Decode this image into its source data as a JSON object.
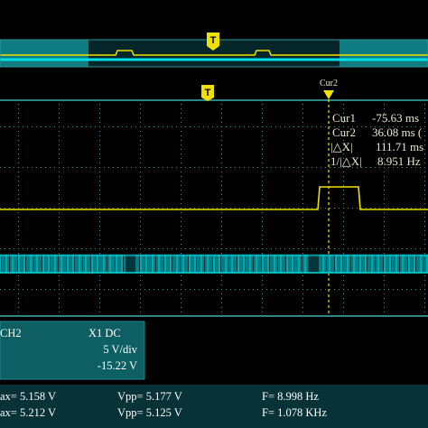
{
  "colors": {
    "background": "#000000",
    "trace_ch1": "#f0e000",
    "trace_ch2": "#00d8e0",
    "grid": "#3a9a9a",
    "panel": "#0e5f63",
    "cursor": "#f0e000",
    "marker_text": "#000000",
    "marker_fill": "#f0e000"
  },
  "icons": {
    "trigger_marker_top": "trigger-position-marker-icon",
    "trigger_marker_grid": "trigger-position-marker-icon",
    "cursor_marker": "cursor-marker-icon"
  },
  "overview": {
    "trigger_label": "T"
  },
  "main": {
    "trigger_label": "T",
    "cursor_label": "Cur2"
  },
  "cursor_readout": {
    "cur1_label": "Cur1",
    "cur1_value": "-75.63 ms",
    "cur2_label": "Cur2",
    "cur2_value": "36.08 ms (",
    "delta_label": "|△X|",
    "delta_value": "111.71 ms",
    "freq_label": "1/|△X|",
    "freq_value": "8.951 Hz"
  },
  "channel_panel": {
    "name": "CH2",
    "probe_coupling": "X1  DC",
    "scale": "5 V/div",
    "offset": "-15.22 V"
  },
  "measurements": {
    "row1": {
      "max": "ax= 5.158 V",
      "vpp": "Vpp= 5.177 V",
      "freq": "F= 8.998 Hz"
    },
    "row2": {
      "max": "ax= 5.212 V",
      "vpp": "Vpp= 5.125 V",
      "freq": "F= 1.078 KHz"
    }
  }
}
